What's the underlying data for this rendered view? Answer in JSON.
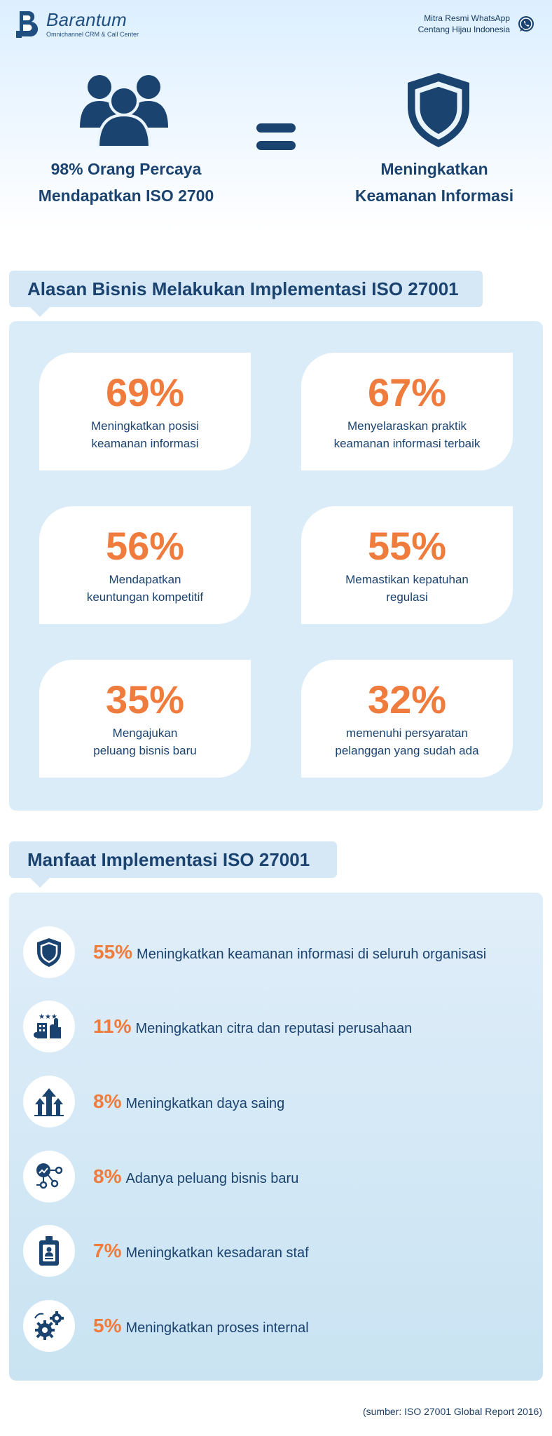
{
  "brand": {
    "name": "Barantum",
    "tagline": "Omnichannel CRM & Call Center"
  },
  "partner": {
    "line1": "Mitra Resmi WhatsApp",
    "line2": "Centang Hijau Indonesia"
  },
  "hero": {
    "left_line1": "98% Orang Percaya",
    "left_line2": "Mendapatkan ISO 2700",
    "right_line1": "Meningkatkan",
    "right_line2": "Keamanan Informasi"
  },
  "reasons": {
    "heading": "Alasan Bisnis Melakukan Implementasi ISO 27001",
    "items": [
      {
        "pct": "69%",
        "desc": "Meningkatkan posisi\nkeamanan informasi"
      },
      {
        "pct": "67%",
        "desc": "Menyelaraskan praktik\nkeamanan informasi terbaik"
      },
      {
        "pct": "56%",
        "desc": "Mendapatkan\nkeuntungan kompetitif"
      },
      {
        "pct": "55%",
        "desc": "Memastikan kepatuhan\nregulasi"
      },
      {
        "pct": "35%",
        "desc": "Mengajukan\npeluang bisnis baru"
      },
      {
        "pct": "32%",
        "desc": "memenuhi persyaratan\npelanggan yang sudah ada"
      }
    ]
  },
  "benefits": {
    "heading": "Manfaat Implementasi ISO 27001",
    "items": [
      {
        "pct": "55%",
        "text": "Meningkatkan keamanan informasi di seluruh organisasi",
        "icon": "shield-icon"
      },
      {
        "pct": "11%",
        "text": "Meningkatkan citra dan reputasi perusahaan",
        "icon": "reputation-icon"
      },
      {
        "pct": "8%",
        "text": "Meningkatkan daya saing",
        "icon": "growth-arrows-icon"
      },
      {
        "pct": "8%",
        "text": "Adanya peluang bisnis baru",
        "icon": "business-network-icon"
      },
      {
        "pct": "7%",
        "text": "Meningkatkan kesadaran staf",
        "icon": "staff-badge-icon"
      },
      {
        "pct": "5%",
        "text": "Meningkatkan proses internal",
        "icon": "gears-icon"
      }
    ]
  },
  "source": "(sumber: ISO 27001 Global Report 2016)",
  "colors": {
    "primary": "#1b4370",
    "accent": "#ef7b3c",
    "panel": "#dbecf9",
    "heading_bg": "#d6e8f6",
    "whatsapp": "#25d366"
  }
}
